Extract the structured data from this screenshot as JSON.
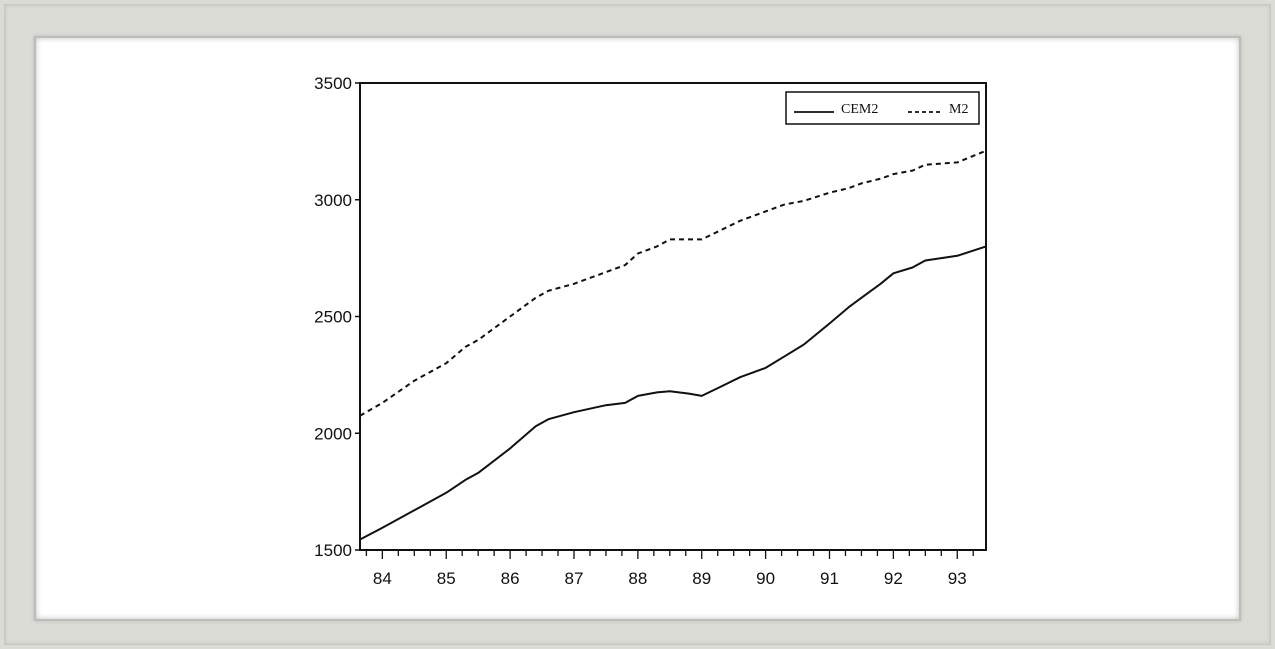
{
  "chart_data": {
    "type": "line",
    "title": "",
    "xlabel": "",
    "ylabel": "",
    "xlim": [
      1983.65,
      1993.45
    ],
    "ylim": [
      1500,
      3500
    ],
    "y_ticks": [
      1500,
      2000,
      2500,
      3000,
      3500
    ],
    "x_tick_labels": [
      "84",
      "85",
      "86",
      "87",
      "88",
      "89",
      "90",
      "91",
      "92",
      "93"
    ],
    "x_tick_values": [
      1984.0,
      1985.0,
      1986.0,
      1987.0,
      1988.0,
      1989.0,
      1990.0,
      1991.0,
      1992.0,
      1993.0
    ],
    "legend_position": "top-right",
    "grid": false,
    "x": [
      1983.65,
      1984.0,
      1984.5,
      1985.0,
      1985.3,
      1985.5,
      1986.0,
      1986.4,
      1986.6,
      1987.0,
      1987.5,
      1987.8,
      1988.0,
      1988.3,
      1988.5,
      1988.8,
      1989.0,
      1989.3,
      1989.6,
      1990.0,
      1990.3,
      1990.6,
      1991.0,
      1991.3,
      1991.5,
      1991.8,
      1992.0,
      1992.3,
      1992.5,
      1993.0,
      1993.45
    ],
    "series": [
      {
        "name": "CEM2",
        "style": "solid",
        "values": [
          1545,
          1595,
          1670,
          1745,
          1800,
          1830,
          1935,
          2030,
          2060,
          2090,
          2120,
          2130,
          2160,
          2175,
          2180,
          2170,
          2160,
          2200,
          2240,
          2280,
          2330,
          2380,
          2470,
          2540,
          2580,
          2640,
          2685,
          2710,
          2740,
          2760,
          2800
        ]
      },
      {
        "name": "M2",
        "style": "dashed",
        "values": [
          2075,
          2130,
          2225,
          2300,
          2370,
          2400,
          2500,
          2580,
          2610,
          2640,
          2690,
          2720,
          2770,
          2800,
          2830,
          2830,
          2830,
          2870,
          2910,
          2950,
          2980,
          2995,
          3030,
          3050,
          3070,
          3090,
          3110,
          3125,
          3150,
          3160,
          3210
        ]
      }
    ]
  }
}
